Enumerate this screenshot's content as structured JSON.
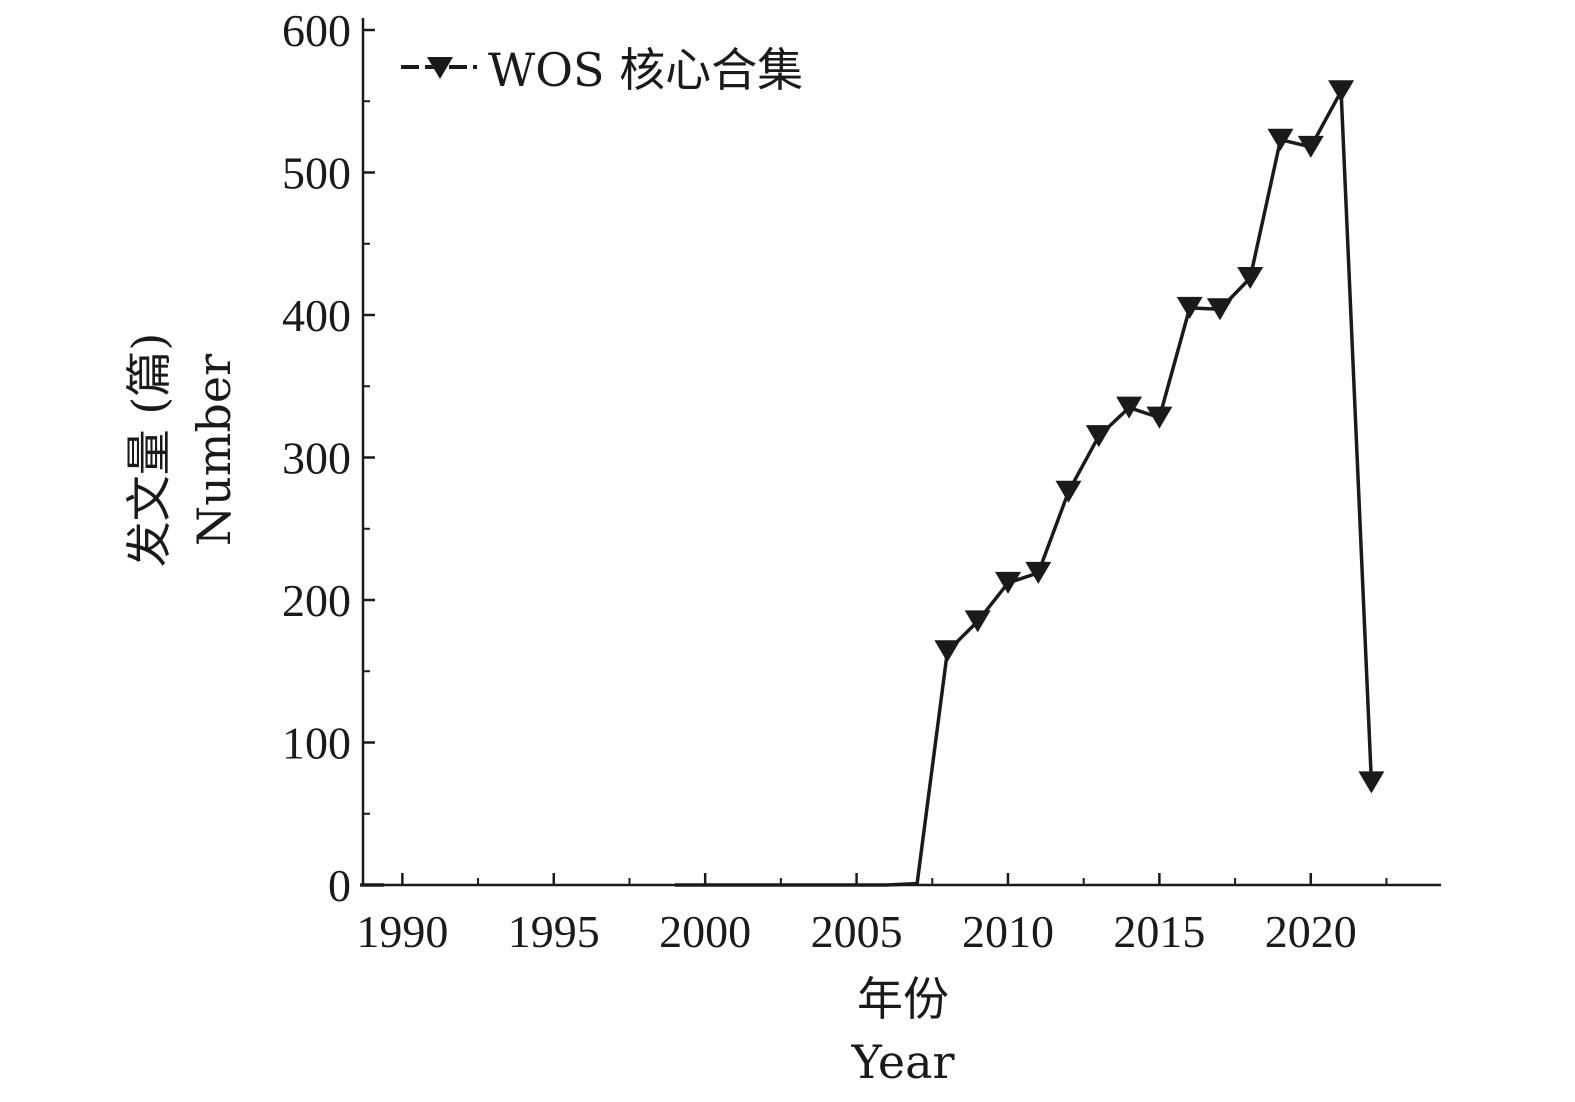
{
  "chart_data": {
    "type": "line",
    "title": "",
    "xlabel": "年份",
    "xlabel_en": "Year",
    "ylabel": "发文量 (篇)",
    "ylabel_en": "Number",
    "xlim": [
      1988.7,
      2024.3
    ],
    "ylim": [
      0,
      600
    ],
    "x_ticks": [
      1990,
      1995,
      2000,
      2005,
      2010,
      2015,
      2020
    ],
    "y_ticks": [
      0,
      100,
      200,
      300,
      400,
      500,
      600
    ],
    "grid": false,
    "legend_position": "top-left",
    "line_color": "#1a1a1a",
    "series": [
      {
        "name": "WOS 核心合集",
        "marker": "triangle-down",
        "x": [
          1989,
          1999,
          2000,
          2001,
          2002,
          2003,
          2004,
          2005,
          2006,
          2007,
          2008,
          2009,
          2010,
          2011,
          2012,
          2013,
          2014,
          2015,
          2016,
          2017,
          2018,
          2019,
          2020,
          2021,
          2022
        ],
        "y": [
          0,
          0,
          0,
          0,
          0,
          0,
          0,
          0,
          0,
          1,
          164,
          185,
          212,
          219,
          276,
          315,
          335,
          328,
          405,
          404,
          426,
          523,
          518,
          557,
          72
        ]
      }
    ]
  }
}
